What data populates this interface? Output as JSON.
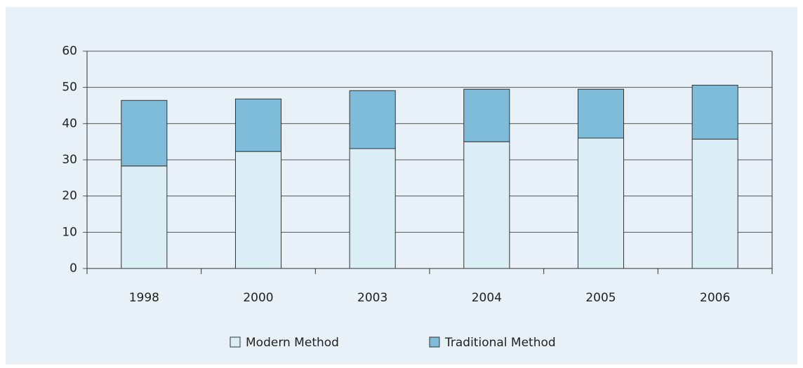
{
  "chart_data": {
    "type": "stacked_bar",
    "categories": [
      "1998",
      "2000",
      "2003",
      "2004",
      "2005",
      "2006"
    ],
    "series": [
      {
        "name": "Modern Method",
        "color": "#dbeef5",
        "values": [
          28.3,
          32.3,
          33.1,
          35.0,
          36.0,
          35.7
        ]
      },
      {
        "name": "Traditional Method",
        "color": "#7fbcd9",
        "values": [
          18.1,
          14.5,
          16.0,
          14.5,
          13.5,
          14.9
        ]
      }
    ],
    "ylim": [
      0,
      60
    ],
    "yticks": [
      0,
      10,
      20,
      30,
      40,
      50,
      60
    ],
    "grid": true
  }
}
